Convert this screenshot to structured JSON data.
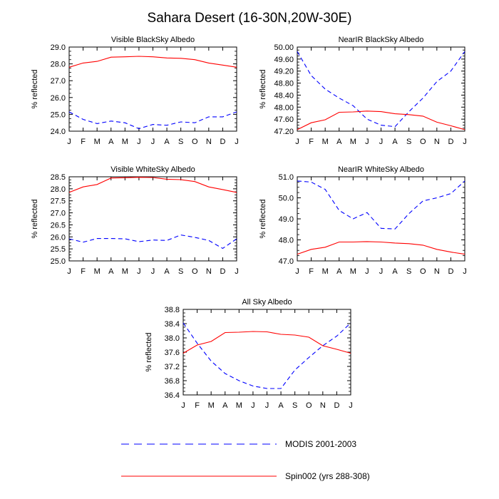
{
  "figure_title": "Sahara Desert (16-30N,20W-30E)",
  "legend": [
    {
      "name": "MODIS 2001-2003",
      "color": "#0000ff",
      "style": "dashed"
    },
    {
      "name": "Spin002 (yrs 288-308)",
      "color": "#ff0000",
      "style": "solid"
    }
  ],
  "chart_data": [
    {
      "type": "line",
      "title": "Visible BlackSky Albedo",
      "ylabel": "% reflected",
      "categories": [
        "J",
        "F",
        "M",
        "A",
        "M",
        "J",
        "J",
        "A",
        "S",
        "O",
        "N",
        "D",
        "J"
      ],
      "ylim": [
        24.0,
        29.0
      ],
      "yticks": [
        "24.0",
        "25.0",
        "26.0",
        "27.0",
        "28.0",
        "29.0"
      ],
      "series": [
        {
          "name": "MODIS 2001-2003",
          "values": [
            25.15,
            24.7,
            24.45,
            24.6,
            24.5,
            24.15,
            24.4,
            24.35,
            24.55,
            24.5,
            24.85,
            24.85,
            25.15
          ]
        },
        {
          "name": "Spin002 (yrs 288-308)",
          "values": [
            27.8,
            28.05,
            28.15,
            28.4,
            28.42,
            28.45,
            28.42,
            28.35,
            28.33,
            28.25,
            28.05,
            27.93,
            27.8
          ]
        }
      ]
    },
    {
      "type": "line",
      "title": "NearIR BlackSky Albedo",
      "ylabel": "% reflected",
      "categories": [
        "J",
        "F",
        "M",
        "A",
        "M",
        "J",
        "J",
        "A",
        "S",
        "O",
        "N",
        "D",
        "J"
      ],
      "ylim": [
        47.2,
        50.0
      ],
      "yticks": [
        "47.20",
        "47.60",
        "48.00",
        "48.40",
        "48.80",
        "49.20",
        "49.60",
        "50.00"
      ],
      "series": [
        {
          "name": "MODIS 2001-2003",
          "values": [
            49.85,
            49.05,
            48.6,
            48.3,
            48.05,
            47.6,
            47.4,
            47.35,
            47.85,
            48.3,
            48.85,
            49.2,
            49.85
          ]
        },
        {
          "name": "Spin002 (yrs 288-308)",
          "values": [
            47.25,
            47.48,
            47.58,
            47.83,
            47.84,
            47.87,
            47.85,
            47.78,
            47.75,
            47.7,
            47.5,
            47.38,
            47.25
          ]
        }
      ]
    },
    {
      "type": "line",
      "title": "Visible WhiteSky Albedo",
      "ylabel": "% reflected",
      "categories": [
        "J",
        "F",
        "M",
        "A",
        "M",
        "J",
        "J",
        "A",
        "S",
        "O",
        "N",
        "D",
        "J"
      ],
      "ylim": [
        25.0,
        28.5
      ],
      "yticks": [
        "25.0",
        "25.5",
        "26.0",
        "26.5",
        "27.0",
        "27.5",
        "28.0",
        "28.5"
      ],
      "series": [
        {
          "name": "MODIS 2001-2003",
          "values": [
            25.92,
            25.78,
            25.93,
            25.93,
            25.92,
            25.8,
            25.87,
            25.85,
            26.08,
            25.98,
            25.85,
            25.52,
            25.92
          ]
        },
        {
          "name": "Spin002 (yrs 288-308)",
          "values": [
            27.85,
            28.08,
            28.18,
            28.45,
            28.46,
            28.48,
            28.47,
            28.4,
            28.38,
            28.3,
            28.08,
            27.97,
            27.85
          ]
        }
      ]
    },
    {
      "type": "line",
      "title": "NearIR WhiteSky Albedo",
      "ylabel": "% reflected",
      "categories": [
        "J",
        "F",
        "M",
        "A",
        "M",
        "J",
        "J",
        "A",
        "S",
        "O",
        "N",
        "D",
        "J"
      ],
      "ylim": [
        47.0,
        51.0
      ],
      "yticks": [
        "47.0",
        "48.0",
        "49.0",
        "50.0",
        "51.0"
      ],
      "series": [
        {
          "name": "MODIS 2001-2003",
          "values": [
            50.8,
            50.75,
            50.4,
            49.4,
            49.0,
            49.3,
            48.55,
            48.52,
            49.25,
            49.85,
            50.0,
            50.2,
            50.8
          ]
        },
        {
          "name": "Spin002 (yrs 288-308)",
          "values": [
            47.32,
            47.55,
            47.65,
            47.9,
            47.9,
            47.92,
            47.9,
            47.85,
            47.82,
            47.75,
            47.55,
            47.42,
            47.32
          ]
        }
      ]
    },
    {
      "type": "line",
      "title": "All Sky Albedo",
      "ylabel": "% reflected",
      "categories": [
        "J",
        "F",
        "M",
        "A",
        "M",
        "J",
        "J",
        "A",
        "S",
        "O",
        "N",
        "D",
        "J"
      ],
      "ylim": [
        36.4,
        38.8
      ],
      "yticks": [
        "36.4",
        "36.8",
        "37.2",
        "37.6",
        "38.0",
        "38.4",
        "38.8"
      ],
      "series": [
        {
          "name": "MODIS 2001-2003",
          "values": [
            38.42,
            37.85,
            37.35,
            37.0,
            36.8,
            36.65,
            36.58,
            36.58,
            37.1,
            37.45,
            37.78,
            38.05,
            38.42
          ]
        },
        {
          "name": "Spin002 (yrs 288-308)",
          "values": [
            37.57,
            37.8,
            37.9,
            38.15,
            38.16,
            38.18,
            38.17,
            38.1,
            38.08,
            38.02,
            37.78,
            37.68,
            37.57
          ]
        }
      ]
    }
  ]
}
